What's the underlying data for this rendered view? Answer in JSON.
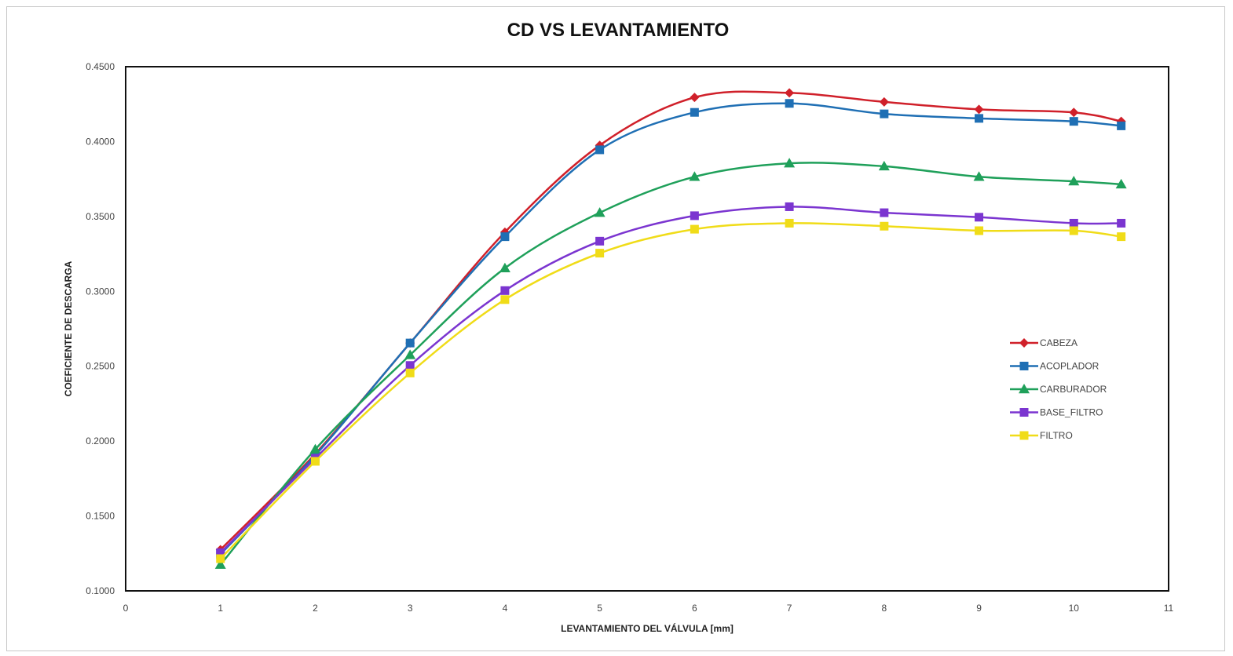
{
  "chart_data": {
    "type": "line",
    "title": "CD VS LEVANTAMIENTO",
    "xlabel": "LEVANTAMIENTO DEL VÁLVULA [mm]",
    "ylabel": "COEFICIENTE DE DESCARGA",
    "xlim": [
      0,
      11
    ],
    "ylim": [
      0.1,
      0.45
    ],
    "xticks": [
      0,
      1,
      2,
      3,
      4,
      5,
      6,
      7,
      8,
      9,
      10,
      11
    ],
    "yticks": [
      0.1,
      0.15,
      0.2,
      0.25,
      0.3,
      0.35,
      0.4,
      0.45
    ],
    "ytick_labels": [
      "0.1000",
      "0.1500",
      "0.2000",
      "0.2500",
      "0.3000",
      "0.3500",
      "0.4000",
      "0.4500"
    ],
    "grid": false,
    "smooth": true,
    "legend_position": "right",
    "x": [
      1,
      2,
      3,
      4,
      5,
      6,
      7,
      8,
      9,
      10,
      10.5
    ],
    "series": [
      {
        "name": "CABEZA",
        "color": "#d0202a",
        "marker": "diamond",
        "values": [
          0.1275,
          0.1915,
          0.2655,
          0.3395,
          0.3975,
          0.4295,
          0.4325,
          0.4265,
          0.4215,
          0.4195,
          0.4135
        ]
      },
      {
        "name": "ACOPLADOR",
        "color": "#1f6fb4",
        "marker": "square",
        "values": [
          0.1245,
          0.1905,
          0.2655,
          0.3365,
          0.3945,
          0.4195,
          0.4255,
          0.4185,
          0.4155,
          0.4135,
          0.4105
        ]
      },
      {
        "name": "CARBURADOR",
        "color": "#1fa05a",
        "marker": "triangle",
        "values": [
          0.1175,
          0.1945,
          0.2575,
          0.3155,
          0.3525,
          0.3765,
          0.3855,
          0.3835,
          0.3765,
          0.3735,
          0.3715
        ]
      },
      {
        "name": "BASE_FILTRO",
        "color": "#7b35d0",
        "marker": "square",
        "values": [
          0.1255,
          0.1885,
          0.2505,
          0.3005,
          0.3335,
          0.3505,
          0.3565,
          0.3525,
          0.3495,
          0.3455,
          0.3455
        ]
      },
      {
        "name": "FILTRO",
        "color": "#f0dc18",
        "marker": "square",
        "values": [
          0.1215,
          0.1865,
          0.2455,
          0.2945,
          0.3255,
          0.3415,
          0.3455,
          0.3435,
          0.3405,
          0.3405,
          0.3365
        ]
      }
    ]
  }
}
